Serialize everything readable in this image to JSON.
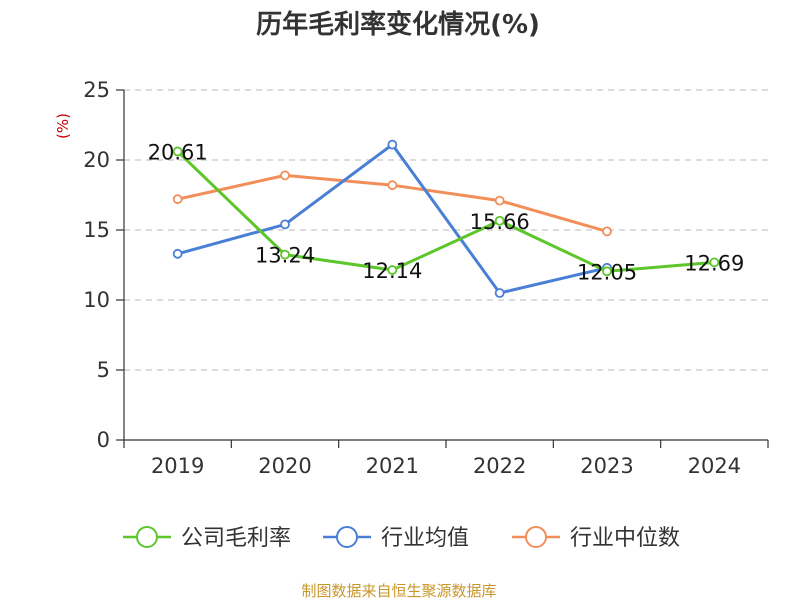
{
  "chart_data": {
    "type": "line",
    "title": "历年毛利率变化情况(%)",
    "ylabel": "(%)",
    "xlabel": "",
    "categories": [
      "2019",
      "2020",
      "2021",
      "2022",
      "2023",
      "2024"
    ],
    "ylim": [
      0,
      25
    ],
    "yticks": [
      0,
      5,
      10,
      15,
      20,
      25
    ],
    "grid": "horizontal-dashed",
    "legend_position": "bottom",
    "series": [
      {
        "name": "公司毛利率",
        "color": "#5cc62b",
        "values": [
          20.61,
          13.24,
          12.14,
          15.66,
          12.05,
          12.69
        ],
        "labels": [
          "20.61",
          "13.24",
          "12.14",
          "15.66",
          "12.05",
          "12.69"
        ]
      },
      {
        "name": "行业均值",
        "color": "#4a7fd6",
        "values": [
          13.3,
          15.4,
          21.1,
          10.5,
          12.3,
          null
        ]
      },
      {
        "name": "行业中位数",
        "color": "#f28e58",
        "values": [
          17.2,
          18.9,
          18.2,
          17.1,
          14.9,
          null
        ]
      }
    ],
    "source": "制图数据来自恒生聚源数据库"
  }
}
